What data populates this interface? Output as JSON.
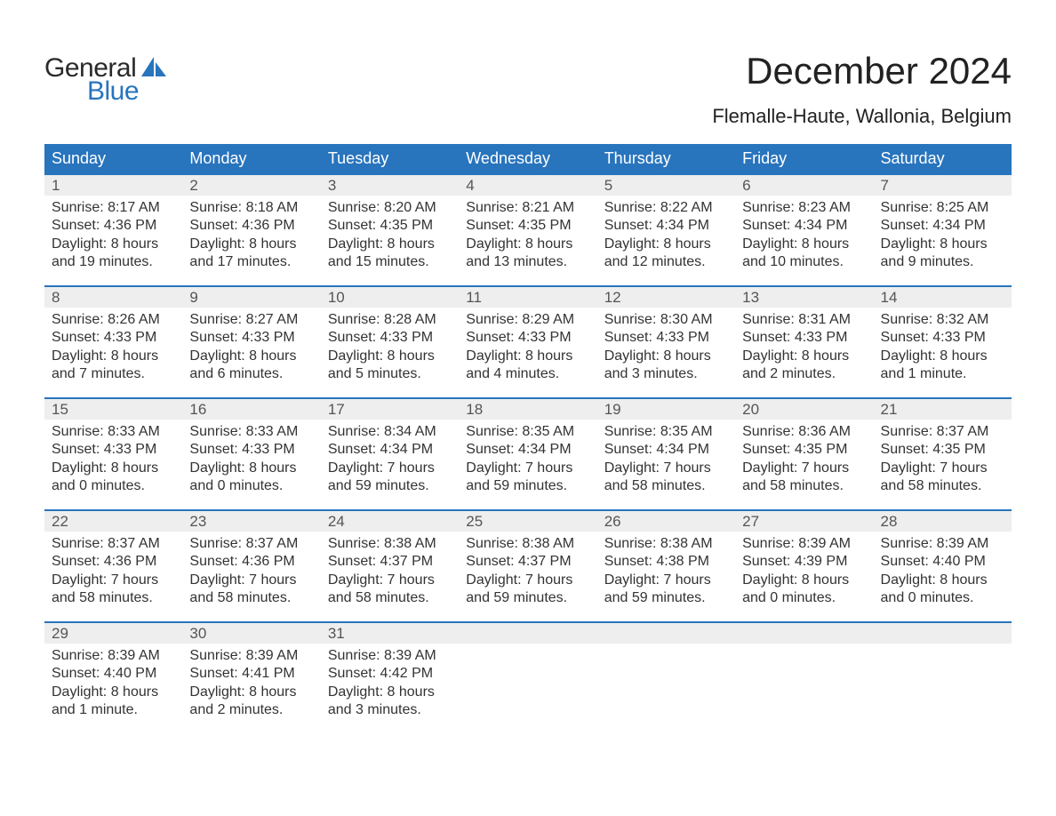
{
  "colors": {
    "header_bg": "#2874bd",
    "header_text": "#ffffff",
    "date_bg": "#eeeeee",
    "date_text": "#555555",
    "body_text": "#333333",
    "border": "#2874bd",
    "logo_general": "#2a2a2a",
    "logo_blue": "#2874bd",
    "background": "#ffffff"
  },
  "logo": {
    "line1": "General",
    "line2": "Blue"
  },
  "title": "December 2024",
  "location": "Flemalle-Haute, Wallonia, Belgium",
  "day_names": [
    "Sunday",
    "Monday",
    "Tuesday",
    "Wednesday",
    "Thursday",
    "Friday",
    "Saturday"
  ],
  "weeks": [
    [
      {
        "date": "1",
        "sunrise": "Sunrise: 8:17 AM",
        "sunset": "Sunset: 4:36 PM",
        "dl1": "Daylight: 8 hours",
        "dl2": "and 19 minutes."
      },
      {
        "date": "2",
        "sunrise": "Sunrise: 8:18 AM",
        "sunset": "Sunset: 4:36 PM",
        "dl1": "Daylight: 8 hours",
        "dl2": "and 17 minutes."
      },
      {
        "date": "3",
        "sunrise": "Sunrise: 8:20 AM",
        "sunset": "Sunset: 4:35 PM",
        "dl1": "Daylight: 8 hours",
        "dl2": "and 15 minutes."
      },
      {
        "date": "4",
        "sunrise": "Sunrise: 8:21 AM",
        "sunset": "Sunset: 4:35 PM",
        "dl1": "Daylight: 8 hours",
        "dl2": "and 13 minutes."
      },
      {
        "date": "5",
        "sunrise": "Sunrise: 8:22 AM",
        "sunset": "Sunset: 4:34 PM",
        "dl1": "Daylight: 8 hours",
        "dl2": "and 12 minutes."
      },
      {
        "date": "6",
        "sunrise": "Sunrise: 8:23 AM",
        "sunset": "Sunset: 4:34 PM",
        "dl1": "Daylight: 8 hours",
        "dl2": "and 10 minutes."
      },
      {
        "date": "7",
        "sunrise": "Sunrise: 8:25 AM",
        "sunset": "Sunset: 4:34 PM",
        "dl1": "Daylight: 8 hours",
        "dl2": "and 9 minutes."
      }
    ],
    [
      {
        "date": "8",
        "sunrise": "Sunrise: 8:26 AM",
        "sunset": "Sunset: 4:33 PM",
        "dl1": "Daylight: 8 hours",
        "dl2": "and 7 minutes."
      },
      {
        "date": "9",
        "sunrise": "Sunrise: 8:27 AM",
        "sunset": "Sunset: 4:33 PM",
        "dl1": "Daylight: 8 hours",
        "dl2": "and 6 minutes."
      },
      {
        "date": "10",
        "sunrise": "Sunrise: 8:28 AM",
        "sunset": "Sunset: 4:33 PM",
        "dl1": "Daylight: 8 hours",
        "dl2": "and 5 minutes."
      },
      {
        "date": "11",
        "sunrise": "Sunrise: 8:29 AM",
        "sunset": "Sunset: 4:33 PM",
        "dl1": "Daylight: 8 hours",
        "dl2": "and 4 minutes."
      },
      {
        "date": "12",
        "sunrise": "Sunrise: 8:30 AM",
        "sunset": "Sunset: 4:33 PM",
        "dl1": "Daylight: 8 hours",
        "dl2": "and 3 minutes."
      },
      {
        "date": "13",
        "sunrise": "Sunrise: 8:31 AM",
        "sunset": "Sunset: 4:33 PM",
        "dl1": "Daylight: 8 hours",
        "dl2": "and 2 minutes."
      },
      {
        "date": "14",
        "sunrise": "Sunrise: 8:32 AM",
        "sunset": "Sunset: 4:33 PM",
        "dl1": "Daylight: 8 hours",
        "dl2": "and 1 minute."
      }
    ],
    [
      {
        "date": "15",
        "sunrise": "Sunrise: 8:33 AM",
        "sunset": "Sunset: 4:33 PM",
        "dl1": "Daylight: 8 hours",
        "dl2": "and 0 minutes."
      },
      {
        "date": "16",
        "sunrise": "Sunrise: 8:33 AM",
        "sunset": "Sunset: 4:33 PM",
        "dl1": "Daylight: 8 hours",
        "dl2": "and 0 minutes."
      },
      {
        "date": "17",
        "sunrise": "Sunrise: 8:34 AM",
        "sunset": "Sunset: 4:34 PM",
        "dl1": "Daylight: 7 hours",
        "dl2": "and 59 minutes."
      },
      {
        "date": "18",
        "sunrise": "Sunrise: 8:35 AM",
        "sunset": "Sunset: 4:34 PM",
        "dl1": "Daylight: 7 hours",
        "dl2": "and 59 minutes."
      },
      {
        "date": "19",
        "sunrise": "Sunrise: 8:35 AM",
        "sunset": "Sunset: 4:34 PM",
        "dl1": "Daylight: 7 hours",
        "dl2": "and 58 minutes."
      },
      {
        "date": "20",
        "sunrise": "Sunrise: 8:36 AM",
        "sunset": "Sunset: 4:35 PM",
        "dl1": "Daylight: 7 hours",
        "dl2": "and 58 minutes."
      },
      {
        "date": "21",
        "sunrise": "Sunrise: 8:37 AM",
        "sunset": "Sunset: 4:35 PM",
        "dl1": "Daylight: 7 hours",
        "dl2": "and 58 minutes."
      }
    ],
    [
      {
        "date": "22",
        "sunrise": "Sunrise: 8:37 AM",
        "sunset": "Sunset: 4:36 PM",
        "dl1": "Daylight: 7 hours",
        "dl2": "and 58 minutes."
      },
      {
        "date": "23",
        "sunrise": "Sunrise: 8:37 AM",
        "sunset": "Sunset: 4:36 PM",
        "dl1": "Daylight: 7 hours",
        "dl2": "and 58 minutes."
      },
      {
        "date": "24",
        "sunrise": "Sunrise: 8:38 AM",
        "sunset": "Sunset: 4:37 PM",
        "dl1": "Daylight: 7 hours",
        "dl2": "and 58 minutes."
      },
      {
        "date": "25",
        "sunrise": "Sunrise: 8:38 AM",
        "sunset": "Sunset: 4:37 PM",
        "dl1": "Daylight: 7 hours",
        "dl2": "and 59 minutes."
      },
      {
        "date": "26",
        "sunrise": "Sunrise: 8:38 AM",
        "sunset": "Sunset: 4:38 PM",
        "dl1": "Daylight: 7 hours",
        "dl2": "and 59 minutes."
      },
      {
        "date": "27",
        "sunrise": "Sunrise: 8:39 AM",
        "sunset": "Sunset: 4:39 PM",
        "dl1": "Daylight: 8 hours",
        "dl2": "and 0 minutes."
      },
      {
        "date": "28",
        "sunrise": "Sunrise: 8:39 AM",
        "sunset": "Sunset: 4:40 PM",
        "dl1": "Daylight: 8 hours",
        "dl2": "and 0 minutes."
      }
    ],
    [
      {
        "date": "29",
        "sunrise": "Sunrise: 8:39 AM",
        "sunset": "Sunset: 4:40 PM",
        "dl1": "Daylight: 8 hours",
        "dl2": "and 1 minute."
      },
      {
        "date": "30",
        "sunrise": "Sunrise: 8:39 AM",
        "sunset": "Sunset: 4:41 PM",
        "dl1": "Daylight: 8 hours",
        "dl2": "and 2 minutes."
      },
      {
        "date": "31",
        "sunrise": "Sunrise: 8:39 AM",
        "sunset": "Sunset: 4:42 PM",
        "dl1": "Daylight: 8 hours",
        "dl2": "and 3 minutes."
      },
      null,
      null,
      null,
      null
    ]
  ]
}
